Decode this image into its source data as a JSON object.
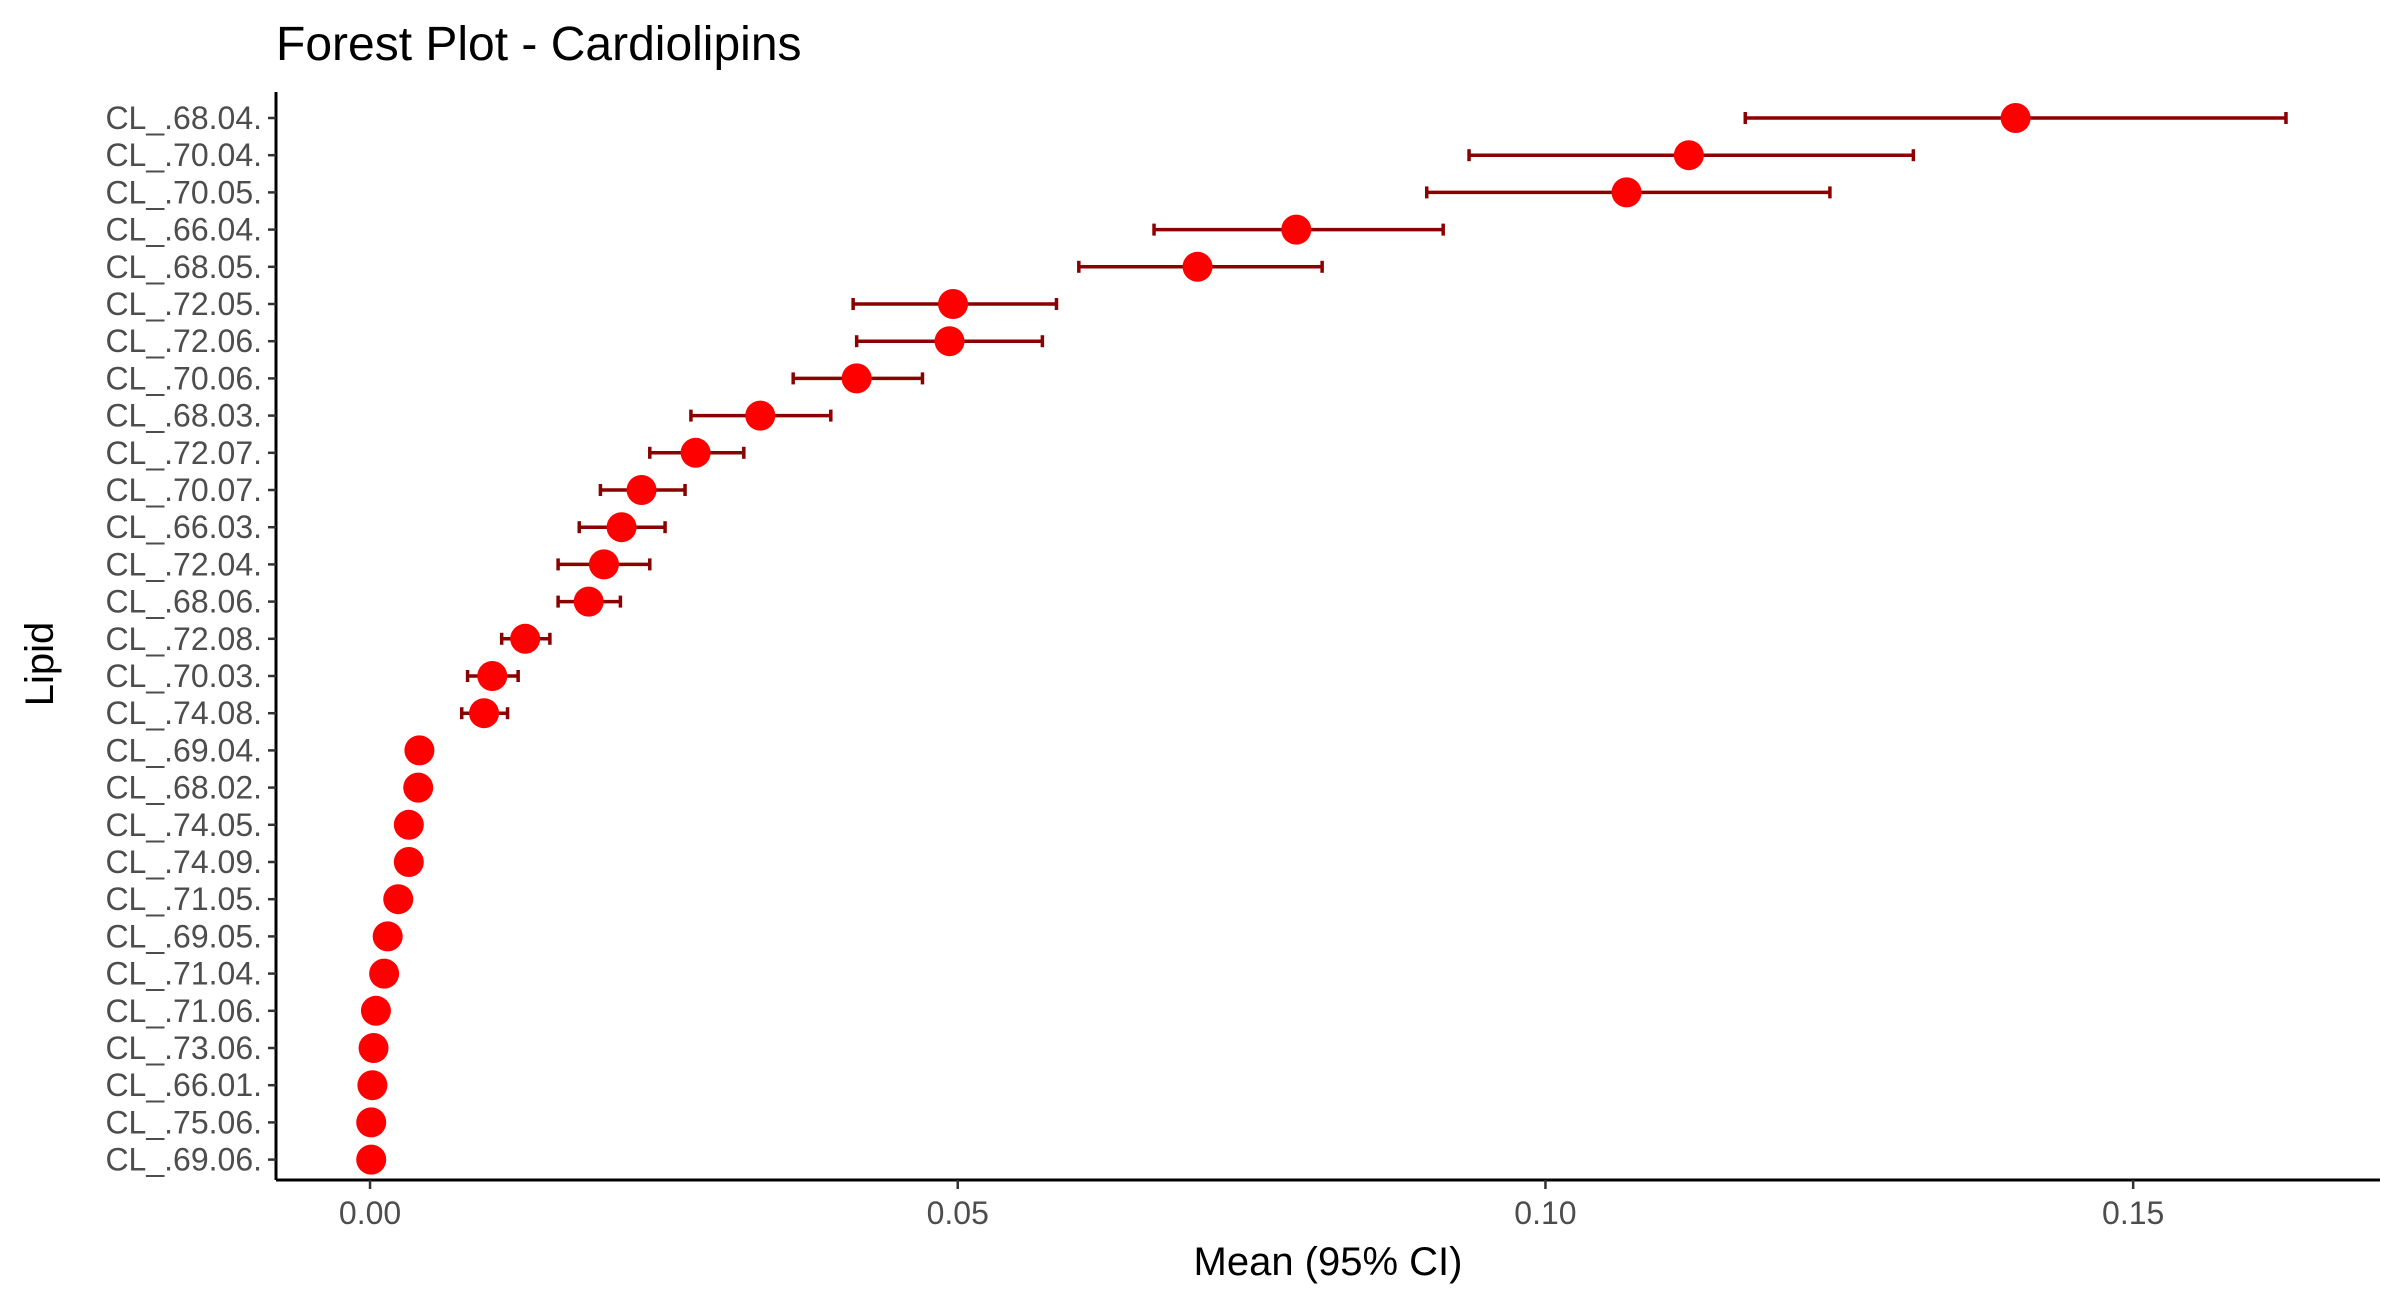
{
  "chart_data": {
    "type": "scatter",
    "subtype": "forest",
    "title": "Forest Plot - Cardiolipins",
    "xlabel": "Mean (95% CI)",
    "ylabel": "Lipid",
    "xlim": [
      -0.008,
      0.171
    ],
    "x_ticks": [
      0,
      0.05,
      0.1,
      0.15
    ],
    "x_tick_labels": [
      "0.00",
      "0.05",
      "0.10",
      "0.15"
    ],
    "grid": false,
    "legend": "none",
    "point_color": "#ff0000",
    "errorbar_color": "#8b0000",
    "rows": [
      {
        "label": "CL_.68.04.",
        "mean": 0.14,
        "lower": 0.117,
        "upper": 0.163
      },
      {
        "label": "CL_.70.04.",
        "mean": 0.1122,
        "lower": 0.0935,
        "upper": 0.1313
      },
      {
        "label": "CL_.70.05.",
        "mean": 0.1069,
        "lower": 0.0899,
        "upper": 0.1242
      },
      {
        "label": "CL_.66.04.",
        "mean": 0.0788,
        "lower": 0.0667,
        "upper": 0.0913
      },
      {
        "label": "CL_.68.05.",
        "mean": 0.0704,
        "lower": 0.0603,
        "upper": 0.081
      },
      {
        "label": "CL_.72.05.",
        "mean": 0.0496,
        "lower": 0.0411,
        "upper": 0.0584
      },
      {
        "label": "CL_.72.06.",
        "mean": 0.0493,
        "lower": 0.0414,
        "upper": 0.0572
      },
      {
        "label": "CL_.70.06.",
        "mean": 0.0414,
        "lower": 0.036,
        "upper": 0.047
      },
      {
        "label": "CL_.68.03.",
        "mean": 0.0332,
        "lower": 0.0273,
        "upper": 0.0392
      },
      {
        "label": "CL_.72.07.",
        "mean": 0.0277,
        "lower": 0.0238,
        "upper": 0.0318
      },
      {
        "label": "CL_.70.07.",
        "mean": 0.0231,
        "lower": 0.0196,
        "upper": 0.0268
      },
      {
        "label": "CL_.66.03.",
        "mean": 0.0214,
        "lower": 0.0178,
        "upper": 0.0251
      },
      {
        "label": "CL_.72.04.",
        "mean": 0.0199,
        "lower": 0.016,
        "upper": 0.0238
      },
      {
        "label": "CL_.68.06.",
        "mean": 0.0186,
        "lower": 0.016,
        "upper": 0.0213
      },
      {
        "label": "CL_.72.08.",
        "mean": 0.0132,
        "lower": 0.0112,
        "upper": 0.0153
      },
      {
        "label": "CL_.70.03.",
        "mean": 0.0104,
        "lower": 0.0083,
        "upper": 0.0126
      },
      {
        "label": "CL_.74.08.",
        "mean": 0.0097,
        "lower": 0.0078,
        "upper": 0.0117
      },
      {
        "label": "CL_.69.04.",
        "mean": 0.0042,
        "lower": 0.0033,
        "upper": 0.0051
      },
      {
        "label": "CL_.68.02.",
        "mean": 0.0041,
        "lower": 0.0032,
        "upper": 0.005
      },
      {
        "label": "CL_.74.05.",
        "mean": 0.0033,
        "lower": 0.0025,
        "upper": 0.0041
      },
      {
        "label": "CL_.74.09.",
        "mean": 0.0033,
        "lower": 0.0025,
        "upper": 0.0042
      },
      {
        "label": "CL_.71.05.",
        "mean": 0.0024,
        "lower": 0.0018,
        "upper": 0.003
      },
      {
        "label": "CL_.69.05.",
        "mean": 0.0015,
        "lower": 0.0011,
        "upper": 0.0019
      },
      {
        "label": "CL_.71.04.",
        "mean": 0.0012,
        "lower": 0.0009,
        "upper": 0.0016
      },
      {
        "label": "CL_.71.06.",
        "mean": 0.0005,
        "lower": 0.0004,
        "upper": 0.0006
      },
      {
        "label": "CL_.73.06.",
        "mean": 0.0003,
        "lower": 0.0002,
        "upper": 0.0004
      },
      {
        "label": "CL_.66.01.",
        "mean": 0.0002,
        "lower": 0.0001,
        "upper": 0.0003
      },
      {
        "label": "CL_.75.06.",
        "mean": 0.0001,
        "lower": 0.0,
        "upper": 0.0002
      },
      {
        "label": "CL_.69.06.",
        "mean": 0.0001,
        "lower": 0.0,
        "upper": 0.0002
      }
    ]
  }
}
